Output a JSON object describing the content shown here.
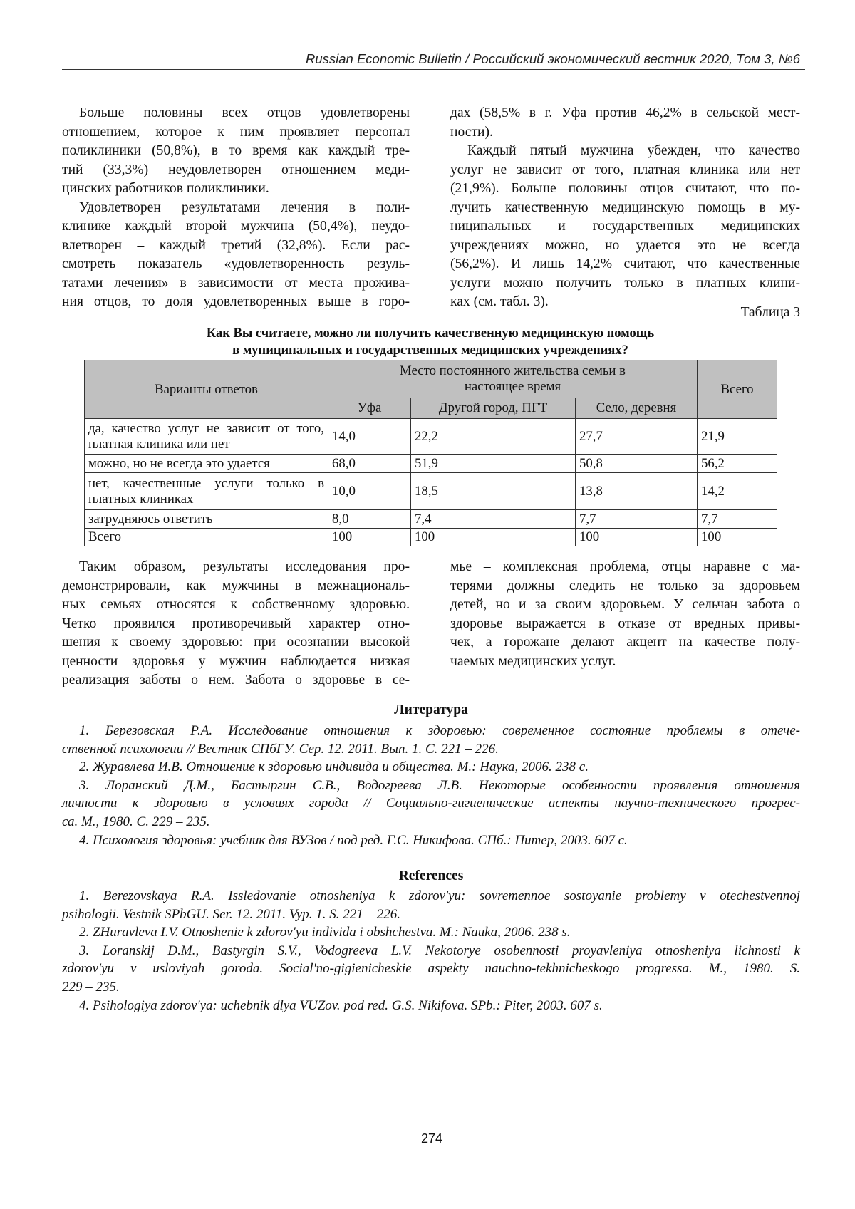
{
  "header": {
    "journal": "Russian Economic Bulletin / Российский экономический вестник 2020, Том 3, №6"
  },
  "top_left": [
    {
      "lines": [
        "Больше половины всех отцов удовлетворены",
        "отношением, которое к ним проявляет персонал",
        "поликлиники (50,8%), в то время как каждый тре-",
        "тий (33,3%) неудовлетворен отношением меди-",
        "цинских работников поликлиники."
      ]
    },
    {
      "lines": [
        "Удовлетворен результатами лечения в поли-",
        "клинике каждый второй мужчина (50,4%), неудо-",
        "влетворен – каждый третий (32,8%). Если рас-",
        "смотреть показатель «удовлетворенность резуль-",
        "татами лечения» в зависимости от места прожива-",
        "ния отцов, то доля удовлетворенных выше в горо-"
      ],
      "continues": true
    }
  ],
  "top_right": [
    {
      "lines": [
        "дах (58,5% в г. Уфа против 46,2% в сельской мест-",
        "ности)."
      ],
      "continued": true
    },
    {
      "lines": [
        "Каждый пятый мужчина убежден, что качество",
        "услуг не зависит от того, платная клиника или нет",
        "(21,9%). Больше половины отцов считают, что по-",
        "лучить качественную медицинскую помощь в му-",
        "ниципальных и государственных медицинских",
        "учреждениях можно, но удается это не всегда",
        "(56,2%). И лишь 14,2% считают, что качественные",
        "услуги можно получить только в платных клини-",
        "ках (см. табл. 3)."
      ]
    }
  ],
  "table": {
    "caption": "Таблица 3",
    "title_line1": "Как Вы считаете, можно ли получить качественную медицинскую помощь",
    "title_line2": "в муниципальных и государственных медицинских учреждениях?",
    "col_answers": "Варианты ответов",
    "col_group": "Место постоянного жительства семьи в настоящее время",
    "col_total": "Всего",
    "sub_cols": [
      "Уфа",
      "Другой город, ПГТ",
      "Село, деревня"
    ],
    "rows": [
      {
        "label": "да, качество услуг не зависит от того, платная клиника или нет",
        "values": [
          "14,0",
          "22,2",
          "27,7",
          "21,9"
        ]
      },
      {
        "label": "можно, но не всегда это удается",
        "values": [
          "68,0",
          "51,9",
          "50,8",
          "56,2"
        ]
      },
      {
        "label": "нет, качественные услуги только в платных клиниках",
        "values": [
          "10,0",
          "18,5",
          "13,8",
          "14,2"
        ]
      },
      {
        "label": "затрудняюсь ответить",
        "values": [
          "8,0",
          "7,4",
          "7,7",
          "7,7"
        ]
      },
      {
        "label": "Всего",
        "values": [
          "100",
          "100",
          "100",
          "100"
        ]
      }
    ]
  },
  "bottom_left": [
    {
      "lines": [
        "Таким образом, результаты исследования про-",
        "демонстрировали, как мужчины в межнациональ-",
        "ных семьях относятся к собственному здоровью.",
        "Четко проявился противоречивый характер отно-",
        "шения к своему здоровью: при осознании высокой",
        "ценности здоровья у мужчин наблюдается низкая",
        "реализация заботы о нем. Забота о здоровье в се-"
      ],
      "continues": true
    }
  ],
  "bottom_right": [
    {
      "lines": [
        "мье – комплексная проблема, отцы наравне с ма-",
        "терями должны следить не только за здоровьем",
        "детей, но и за своим здоровьем. У сельчан забота о",
        "здоровье выражается в отказе от вредных привы-",
        "чек, а горожане делают акцент на качестве полу-",
        "чаемых медицинских услуг."
      ],
      "continued": true
    }
  ],
  "literature": {
    "heading": "Литература",
    "items": [
      {
        "lines": [
          "1. Березовская Р.А. Исследование отношения к здоровью: современное состояние проблемы в отече-",
          "ственной психологии // Вестник СПбГУ. Сер. 12. 2011. Вып. 1. С. 221 – 226."
        ]
      },
      {
        "lines": [
          "2. Журавлева И.В. Отношение к здоровью индивида и общества. М.: Наука, 2006. 238 с."
        ]
      },
      {
        "lines": [
          "3. Лоранский Д.М., Бастыргин С.В., Водогреева Л.В. Некоторые особенности проявления отношения",
          "личности к здоровью в условиях города // Социально-гигиенические аспекты научно-технического прогрес-",
          "са. М., 1980. С. 229 – 235."
        ]
      },
      {
        "lines": [
          "4. Психология здоровья: учебник для ВУЗов / под ред. Г.С. Никифова. СПб.: Питер, 2003. 607 с."
        ]
      }
    ]
  },
  "references": {
    "heading": "References",
    "items": [
      {
        "lines": [
          "1. Berezovskaya R.A. Issledovanie otnosheniya k zdorov'yu: sovremennoe sostoyanie problemy v otechestvennoj",
          "psihologii. Vestnik SPbGU. Ser. 12. 2011. Vyp. 1. S. 221 – 226."
        ]
      },
      {
        "lines": [
          "2. ZHuravleva I.V. Otnoshenie k zdorov'yu individa i obshchestva. M.: Nauka, 2006. 238 s."
        ]
      },
      {
        "lines": [
          "3. Loranskij D.M., Bastyrgin S.V., Vodogreeva L.V. Nekotorye osobennosti proyavleniya otnosheniya lichnosti k",
          "zdorov'yu v usloviyah goroda. Social'no-gigienicheskie aspekty nauchno-tekhnicheskogo progressa. M., 1980. S.",
          "229 – 235."
        ]
      },
      {
        "lines": [
          "4. Psihologiya zdorov'ya: uchebnik dlya VUZov. pod red. G.S. Nikifova. SPb.: Piter, 2003. 607 s."
        ]
      }
    ]
  },
  "page_number": "274"
}
